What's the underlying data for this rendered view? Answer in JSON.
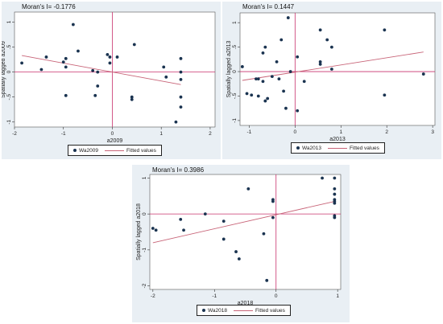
{
  "colors": {
    "point": "#1a3350",
    "fitted_line": "#c86478",
    "ref_line": "#c8326e",
    "panel_bg": "#e9eff4",
    "plot_bg": "#ffffff"
  },
  "chart_data": [
    {
      "type": "scatter",
      "title": "Moran's I= -0.1776",
      "xlabel": "a2009",
      "ylabel": "Spatially lagged a2009",
      "xlim": [
        -2,
        2.1
      ],
      "ylim": [
        -1.1,
        1.2
      ],
      "xticks": [
        "-2",
        "-1",
        "0",
        "1",
        "2"
      ],
      "yticks": [
        "-1",
        "-.5",
        "0",
        ".5",
        "1"
      ],
      "legend": {
        "points": "Wa2009",
        "line": "Fitted values"
      },
      "points": [
        [
          -1.85,
          0.18
        ],
        [
          -1.45,
          0.05
        ],
        [
          -1.35,
          0.3
        ],
        [
          -1.0,
          0.2
        ],
        [
          -0.95,
          0.27
        ],
        [
          -0.95,
          0.1
        ],
        [
          -0.95,
          -0.47
        ],
        [
          -0.8,
          0.95
        ],
        [
          -0.7,
          0.42
        ],
        [
          -0.4,
          0.03
        ],
        [
          -0.35,
          -0.47
        ],
        [
          -0.3,
          -0.28
        ],
        [
          -0.3,
          0.0
        ],
        [
          -0.1,
          0.35
        ],
        [
          -0.05,
          0.3
        ],
        [
          -0.05,
          0.18
        ],
        [
          0.1,
          0.3
        ],
        [
          0.4,
          -0.5
        ],
        [
          0.4,
          -0.55
        ],
        [
          0.45,
          0.55
        ],
        [
          1.05,
          0.1
        ],
        [
          1.1,
          -0.1
        ],
        [
          1.3,
          -1.0
        ],
        [
          1.4,
          0.27
        ],
        [
          1.4,
          -0.5
        ],
        [
          1.4,
          0.0
        ],
        [
          1.4,
          -0.15
        ],
        [
          1.4,
          -0.7
        ]
      ],
      "fit": [
        [
          -1.85,
          0.33
        ],
        [
          1.4,
          -0.25
        ]
      ]
    },
    {
      "type": "scatter",
      "title": "Moran's I= 0.1447",
      "xlabel": "a2013",
      "ylabel": "Spatially lagged a2013",
      "xlim": [
        -1.2,
        3.05
      ],
      "ylim": [
        -1.1,
        1.2
      ],
      "xticks": [
        "-1",
        "0",
        "1",
        "2",
        "3"
      ],
      "yticks": [
        "-1",
        "-.5",
        "0",
        ".5",
        "1"
      ],
      "legend": {
        "points": "Wa2013",
        "line": "Fitted values"
      },
      "points": [
        [
          -1.15,
          0.1
        ],
        [
          -1.05,
          -0.45
        ],
        [
          -0.95,
          -0.48
        ],
        [
          -0.85,
          -0.15
        ],
        [
          -0.8,
          -0.15
        ],
        [
          -0.8,
          -0.5
        ],
        [
          -0.7,
          0.38
        ],
        [
          -0.7,
          -0.2
        ],
        [
          -0.65,
          0.5
        ],
        [
          -0.65,
          -0.6
        ],
        [
          -0.6,
          -0.55
        ],
        [
          -0.5,
          -0.1
        ],
        [
          -0.4,
          0.2
        ],
        [
          -0.35,
          -0.15
        ],
        [
          -0.3,
          0.65
        ],
        [
          -0.25,
          -0.4
        ],
        [
          -0.2,
          -0.75
        ],
        [
          -0.15,
          1.1
        ],
        [
          -0.1,
          0.0
        ],
        [
          0.05,
          0.3
        ],
        [
          0.05,
          -0.8
        ],
        [
          0.2,
          -0.2
        ],
        [
          0.55,
          0.85
        ],
        [
          0.55,
          0.2
        ],
        [
          0.55,
          0.15
        ],
        [
          0.7,
          0.65
        ],
        [
          0.8,
          0.05
        ],
        [
          0.8,
          0.5
        ],
        [
          1.95,
          0.85
        ],
        [
          1.95,
          -0.48
        ],
        [
          2.8,
          -0.05
        ]
      ],
      "fit": [
        [
          -1.15,
          -0.18
        ],
        [
          2.8,
          0.4
        ]
      ]
    },
    {
      "type": "scatter",
      "title": "Moran's I= 0.3986",
      "xlabel": "a2018",
      "ylabel": "Spatially lagged a2018",
      "xlim": [
        -2.05,
        1.05
      ],
      "ylim": [
        -2.1,
        1.1
      ],
      "xticks": [
        "-2",
        "-1",
        "0",
        "1"
      ],
      "yticks": [
        "-2",
        "-1",
        "0",
        "1"
      ],
      "legend": {
        "points": "Wa2018",
        "line": "Fitted values"
      },
      "points": [
        [
          -2.0,
          -0.4
        ],
        [
          -1.95,
          -0.45
        ],
        [
          -1.55,
          -0.15
        ],
        [
          -1.5,
          -0.45
        ],
        [
          -1.15,
          0.0
        ],
        [
          -0.85,
          -0.2
        ],
        [
          -0.85,
          -0.7
        ],
        [
          -0.65,
          -1.05
        ],
        [
          -0.6,
          -1.25
        ],
        [
          -0.45,
          0.7
        ],
        [
          -0.2,
          -0.55
        ],
        [
          -0.15,
          -1.85
        ],
        [
          -0.05,
          -0.1
        ],
        [
          -0.05,
          0.4
        ],
        [
          -0.05,
          0.35
        ],
        [
          0.75,
          1.0
        ],
        [
          0.95,
          1.0
        ],
        [
          0.95,
          0.7
        ],
        [
          0.95,
          0.55
        ],
        [
          0.95,
          0.4
        ],
        [
          0.95,
          0.35
        ],
        [
          0.95,
          0.3
        ],
        [
          0.95,
          -0.05
        ],
        [
          0.95,
          -0.1
        ]
      ],
      "fit": [
        [
          -2.0,
          -0.8
        ],
        [
          0.95,
          0.35
        ]
      ]
    }
  ]
}
